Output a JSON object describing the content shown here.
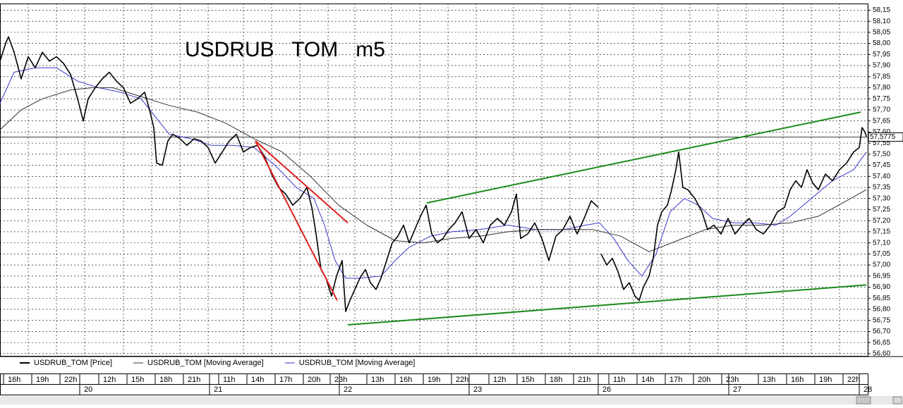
{
  "chart_data": {
    "type": "line",
    "title": "USDRUB   TOM   m5",
    "xlim": [
      0,
      1230
    ],
    "ylim": [
      56.59,
      58.18
    ],
    "grid": true,
    "yticks": [
      {
        "value": 56.6,
        "label": "56,60"
      },
      {
        "value": 56.65,
        "label": "56,65"
      },
      {
        "value": 56.7,
        "label": "56,70"
      },
      {
        "value": 56.75,
        "label": "56,75"
      },
      {
        "value": 56.8,
        "label": "56,80"
      },
      {
        "value": 56.85,
        "label": "56,85"
      },
      {
        "value": 56.9,
        "label": "56,90"
      },
      {
        "value": 56.95,
        "label": "56,95"
      },
      {
        "value": 57.0,
        "label": "57,00"
      },
      {
        "value": 57.05,
        "label": "57,05"
      },
      {
        "value": 57.1,
        "label": "57,10"
      },
      {
        "value": 57.15,
        "label": "57,15"
      },
      {
        "value": 57.2,
        "label": "57,20"
      },
      {
        "value": 57.25,
        "label": "57,25"
      },
      {
        "value": 57.3,
        "label": "57,30"
      },
      {
        "value": 57.35,
        "label": "57,35"
      },
      {
        "value": 57.4,
        "label": "57,40"
      },
      {
        "value": 57.45,
        "label": "57,45"
      },
      {
        "value": 57.5,
        "label": "57,50"
      },
      {
        "value": 57.55,
        "label": "57,55"
      },
      {
        "value": 57.6,
        "label": "57,60"
      },
      {
        "value": 57.65,
        "label": "57,65"
      },
      {
        "value": 57.7,
        "label": "57,70"
      },
      {
        "value": 57.75,
        "label": "57,75"
      },
      {
        "value": 57.8,
        "label": "57,80"
      },
      {
        "value": 57.85,
        "label": "57,85"
      },
      {
        "value": 57.9,
        "label": "57,90"
      },
      {
        "value": 57.95,
        "label": "57,95"
      },
      {
        "value": 58.0,
        "label": "58,00"
      },
      {
        "value": 58.05,
        "label": "58,05"
      },
      {
        "value": 58.1,
        "label": "58,10"
      },
      {
        "value": 58.15,
        "label": "58,15"
      }
    ],
    "xticks": [
      {
        "value": 5,
        "label": "16h"
      },
      {
        "value": 45,
        "label": "19h"
      },
      {
        "value": 85,
        "label": "22h"
      },
      {
        "value": 140,
        "label": "12h"
      },
      {
        "value": 180,
        "label": "15h"
      },
      {
        "value": 220,
        "label": "18h"
      },
      {
        "value": 260,
        "label": "21h"
      },
      {
        "value": 310,
        "label": "11h"
      },
      {
        "value": 350,
        "label": "14h"
      },
      {
        "value": 390,
        "label": "17h"
      },
      {
        "value": 430,
        "label": "20h"
      },
      {
        "value": 468,
        "label": "23h"
      },
      {
        "value": 520,
        "label": "13h"
      },
      {
        "value": 560,
        "label": "16h"
      },
      {
        "value": 600,
        "label": "19h"
      },
      {
        "value": 640,
        "label": "22h"
      },
      {
        "value": 693,
        "label": "12h"
      },
      {
        "value": 733,
        "label": "15h"
      },
      {
        "value": 773,
        "label": "18h"
      },
      {
        "value": 813,
        "label": "21h"
      },
      {
        "value": 863,
        "label": "11h"
      },
      {
        "value": 903,
        "label": "14h"
      },
      {
        "value": 943,
        "label": "17h"
      },
      {
        "value": 983,
        "label": "20h"
      },
      {
        "value": 1023,
        "label": "23h"
      },
      {
        "value": 1075,
        "label": "13h"
      },
      {
        "value": 1115,
        "label": "16h"
      },
      {
        "value": 1155,
        "label": "19h"
      },
      {
        "value": 1195,
        "label": "22h"
      }
    ],
    "date_ticks": [
      {
        "value": 113,
        "label": "20"
      },
      {
        "value": 297,
        "label": "21"
      },
      {
        "value": 481,
        "label": "22"
      },
      {
        "value": 665,
        "label": "23"
      },
      {
        "value": 848,
        "label": "26"
      },
      {
        "value": 1033,
        "label": "27"
      },
      {
        "value": 1218,
        "label": "28"
      }
    ],
    "last_price": {
      "value": 57.5775,
      "label": "57,5775"
    },
    "series": [
      {
        "name": "USDRUB_TOM [Price]",
        "color": "#000000",
        "x": [
          0,
          8,
          12,
          20,
          30,
          40,
          50,
          60,
          70,
          80,
          90,
          100,
          110,
          118,
          125,
          135,
          145,
          155,
          165,
          175,
          185,
          195,
          205,
          212,
          218,
          222,
          230,
          238,
          245,
          255,
          265,
          275,
          285,
          295,
          305,
          315,
          325,
          335,
          345,
          355,
          365,
          375,
          385,
          395,
          405,
          415,
          425,
          435,
          442,
          448,
          455,
          462,
          470,
          477,
          485,
          490,
          496,
          503,
          510,
          518,
          525,
          533,
          540,
          548,
          556,
          564,
          572,
          580,
          588,
          596,
          604,
          612,
          620,
          628,
          636,
          645,
          655,
          665,
          675,
          685,
          695,
          705,
          715,
          725,
          732,
          738,
          748,
          758,
          768,
          778,
          788,
          798,
          808,
          818,
          828,
          838,
          848,
          850,
          852,
          860,
          868,
          876,
          884,
          892,
          900,
          906,
          912,
          920,
          926,
          932,
          938,
          946,
          952,
          958,
          962,
          968,
          975,
          985,
          995,
          1003,
          1012,
          1022,
          1032,
          1042,
          1052,
          1062,
          1072,
          1082,
          1092,
          1102,
          1112,
          1120,
          1128,
          1136,
          1144,
          1152,
          1160,
          1170,
          1180,
          1190,
          1200,
          1210,
          1218,
          1222,
          1226,
          1228
        ],
        "values": [
          57.92,
          58.0,
          58.03,
          57.96,
          57.84,
          57.94,
          57.89,
          57.96,
          57.92,
          57.94,
          57.91,
          57.86,
          57.75,
          57.65,
          57.75,
          57.8,
          57.84,
          57.87,
          57.83,
          57.8,
          57.73,
          57.75,
          57.78,
          57.7,
          57.62,
          57.46,
          57.45,
          57.56,
          57.59,
          57.57,
          57.54,
          57.57,
          57.56,
          57.53,
          57.46,
          57.51,
          57.56,
          57.59,
          57.51,
          57.53,
          57.54,
          57.49,
          57.41,
          57.35,
          57.32,
          57.27,
          57.3,
          57.35,
          57.26,
          57.14,
          56.98,
          56.94,
          56.86,
          56.95,
          57.02,
          56.79,
          56.84,
          56.89,
          56.94,
          56.98,
          56.92,
          56.89,
          56.94,
          57.02,
          57.1,
          57.13,
          57.18,
          57.1,
          57.16,
          57.22,
          57.27,
          57.14,
          57.1,
          57.12,
          57.16,
          57.19,
          57.24,
          57.12,
          57.16,
          57.1,
          57.18,
          57.21,
          57.18,
          57.24,
          57.32,
          57.12,
          57.14,
          57.19,
          57.12,
          57.02,
          57.13,
          57.16,
          57.22,
          57.14,
          57.21,
          57.29,
          57.26,
          null,
          57.05,
          57.0,
          57.03,
          56.97,
          56.89,
          56.92,
          56.86,
          56.84,
          56.9,
          56.95,
          57.03,
          57.18,
          57.24,
          57.27,
          57.34,
          57.43,
          57.51,
          57.35,
          57.34,
          57.3,
          57.24,
          57.16,
          57.18,
          57.14,
          57.21,
          57.14,
          57.18,
          57.21,
          57.16,
          57.14,
          57.18,
          57.24,
          57.26,
          57.34,
          57.38,
          57.35,
          57.43,
          57.37,
          57.34,
          57.41,
          57.38,
          57.43,
          57.46,
          57.51,
          57.53,
          57.62,
          57.6,
          57.58
        ]
      },
      {
        "name": "USDRUB_TOM [Moving Average]",
        "color": "#333333",
        "x": [
          0,
          30,
          60,
          100,
          130,
          160,
          200,
          240,
          280,
          320,
          360,
          400,
          440,
          480,
          520,
          560,
          600,
          640,
          680,
          720,
          760,
          800,
          840,
          880,
          920,
          960,
          1000,
          1040,
          1080,
          1120,
          1160,
          1200,
          1228
        ],
        "values": [
          57.61,
          57.7,
          57.75,
          57.79,
          57.8,
          57.8,
          57.76,
          57.72,
          57.69,
          57.64,
          57.57,
          57.51,
          57.4,
          57.27,
          57.18,
          57.11,
          57.1,
          57.12,
          57.13,
          57.15,
          57.16,
          57.16,
          57.16,
          57.13,
          57.06,
          57.11,
          57.16,
          57.18,
          57.18,
          57.19,
          57.22,
          57.29,
          57.34
        ]
      },
      {
        "name": "USDRUB_TOM [Moving Average]",
        "color": "#3a3acc",
        "x": [
          0,
          20,
          50,
          80,
          110,
          140,
          170,
          200,
          220,
          240,
          270,
          300,
          330,
          360,
          390,
          420,
          445,
          460,
          475,
          490,
          510,
          540,
          560,
          580,
          610,
          640,
          680,
          720,
          760,
          800,
          830,
          850,
          870,
          890,
          910,
          930,
          950,
          970,
          990,
          1010,
          1040,
          1070,
          1100,
          1120,
          1150,
          1180,
          1210,
          1228
        ],
        "values": [
          57.73,
          57.87,
          57.89,
          57.89,
          57.83,
          57.8,
          57.78,
          57.75,
          57.67,
          57.59,
          57.57,
          57.54,
          57.54,
          57.53,
          57.45,
          57.35,
          57.3,
          57.18,
          57.02,
          56.94,
          56.94,
          56.95,
          57.02,
          57.08,
          57.13,
          57.15,
          57.16,
          57.18,
          57.16,
          57.16,
          57.18,
          57.19,
          57.12,
          57.02,
          56.95,
          57.05,
          57.24,
          57.3,
          57.27,
          57.21,
          57.19,
          57.19,
          57.18,
          57.22,
          57.3,
          57.38,
          57.43,
          57.51
        ]
      }
    ],
    "trendlines": [
      {
        "color": "#e02020",
        "x": [
          362,
          493
        ],
        "values": [
          57.56,
          57.19
        ]
      },
      {
        "color": "#e02020",
        "x": [
          362,
          478
        ],
        "values": [
          57.56,
          56.84
        ]
      },
      {
        "color": "#1a8a1a",
        "x": [
          605,
          1220
        ],
        "values": [
          57.28,
          57.69
        ]
      },
      {
        "color": "#1a8a1a",
        "x": [
          493,
          1228
        ],
        "values": [
          56.73,
          56.91
        ]
      }
    ]
  }
}
